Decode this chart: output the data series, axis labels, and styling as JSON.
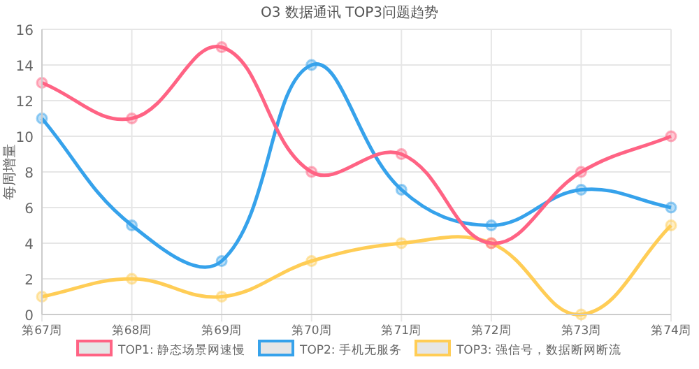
{
  "chart_data": {
    "type": "line",
    "title": "O3 数据通讯 TOP3问题趋势",
    "ylabel": "每周增量",
    "categories": [
      "第67周",
      "第68周",
      "第69周",
      "第70周",
      "第71周",
      "第72周",
      "第73周",
      "第74周"
    ],
    "series": [
      {
        "name": "TOP1: 静态场景网速慢",
        "color": "#ff6384",
        "values": [
          13,
          11,
          15,
          8,
          9,
          4,
          8,
          10
        ]
      },
      {
        "name": "TOP2: 手机无服务",
        "color": "#36a2eb",
        "values": [
          11,
          5,
          3,
          14,
          7,
          5,
          7,
          6
        ]
      },
      {
        "name": "TOP3: 强信号，数据断网断流",
        "color": "#ffcd56",
        "values": [
          1,
          2,
          1,
          3,
          4,
          4,
          0,
          5
        ]
      }
    ],
    "ylim": [
      0,
      16
    ],
    "yticks": [
      0,
      2,
      4,
      6,
      8,
      10,
      12,
      14,
      16
    ],
    "grid": true,
    "legend": "bottom",
    "marker": "circle",
    "line_style": "solid"
  }
}
